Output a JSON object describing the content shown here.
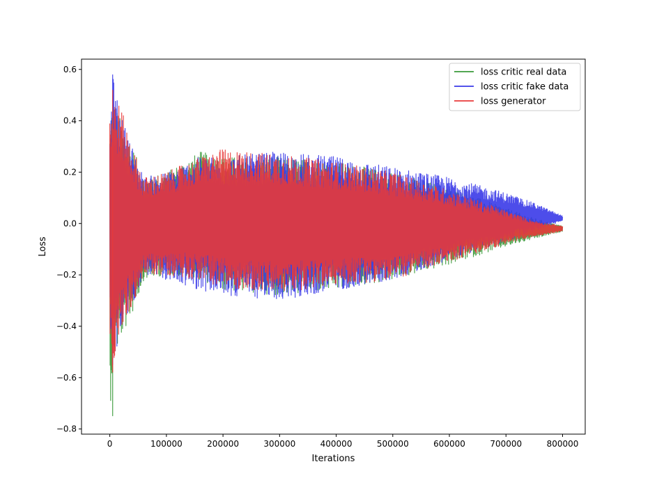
{
  "chart_data": {
    "type": "line",
    "title": "",
    "xlabel": "Iterations",
    "ylabel": "Loss",
    "xlim": [
      -50000,
      840000
    ],
    "ylim": [
      -0.82,
      0.64
    ],
    "x_ticks": [
      0,
      100000,
      200000,
      300000,
      400000,
      500000,
      600000,
      700000,
      800000
    ],
    "x_tick_labels": [
      "0",
      "100000",
      "200000",
      "300000",
      "400000",
      "500000",
      "600000",
      "700000",
      "800000"
    ],
    "y_ticks": [
      -0.8,
      -0.6,
      -0.4,
      -0.2,
      0.0,
      0.2,
      0.4,
      0.6
    ],
    "y_tick_labels": [
      "−0.8",
      "−0.6",
      "−0.4",
      "−0.2",
      "0.0",
      "0.2",
      "0.4",
      "0.6"
    ],
    "grid": false,
    "legend_position": "top-right",
    "x_range_of_data": [
      0,
      800000
    ],
    "series": [
      {
        "name": "loss critic real data",
        "color": "#3a9a3a",
        "envelope_x": [
          0,
          5000,
          20000,
          40000,
          60000,
          100000,
          160000,
          200000,
          300000,
          400000,
          500000,
          600000,
          700000,
          750000,
          800000
        ],
        "envelope_upper": [
          0.4,
          0.5,
          0.4,
          0.3,
          0.18,
          0.2,
          0.28,
          0.26,
          0.26,
          0.24,
          0.2,
          0.14,
          0.06,
          0.02,
          -0.01
        ],
        "envelope_lower": [
          -0.75,
          -0.55,
          -0.45,
          -0.35,
          -0.22,
          -0.2,
          -0.22,
          -0.26,
          -0.28,
          -0.26,
          -0.22,
          -0.16,
          -0.09,
          -0.06,
          -0.03
        ],
        "min": -0.75,
        "max": 0.5
      },
      {
        "name": "loss critic fake data",
        "color": "#3a3ae8",
        "envelope_x": [
          0,
          5000,
          20000,
          40000,
          60000,
          100000,
          160000,
          200000,
          300000,
          400000,
          500000,
          600000,
          700000,
          750000,
          800000
        ],
        "envelope_upper": [
          0.4,
          0.58,
          0.42,
          0.3,
          0.18,
          0.2,
          0.26,
          0.26,
          0.28,
          0.26,
          0.22,
          0.18,
          0.12,
          0.08,
          0.03
        ],
        "envelope_lower": [
          -0.4,
          -0.55,
          -0.42,
          -0.32,
          -0.2,
          -0.22,
          -0.26,
          -0.28,
          -0.3,
          -0.26,
          -0.22,
          -0.14,
          -0.07,
          -0.03,
          0.01
        ],
        "min": -0.55,
        "max": 0.58
      },
      {
        "name": "loss generator",
        "color": "#e83a3a",
        "envelope_x": [
          0,
          5000,
          20000,
          40000,
          60000,
          100000,
          160000,
          200000,
          300000,
          400000,
          500000,
          600000,
          700000,
          750000,
          800000
        ],
        "envelope_upper": [
          0.45,
          0.52,
          0.45,
          0.3,
          0.18,
          0.2,
          0.26,
          0.29,
          0.27,
          0.24,
          0.2,
          0.13,
          0.05,
          0.01,
          -0.01
        ],
        "envelope_lower": [
          -0.42,
          -0.58,
          -0.42,
          -0.32,
          -0.2,
          -0.2,
          -0.22,
          -0.25,
          -0.27,
          -0.24,
          -0.22,
          -0.15,
          -0.08,
          -0.05,
          -0.03
        ],
        "min": -0.58,
        "max": 0.52
      }
    ]
  }
}
